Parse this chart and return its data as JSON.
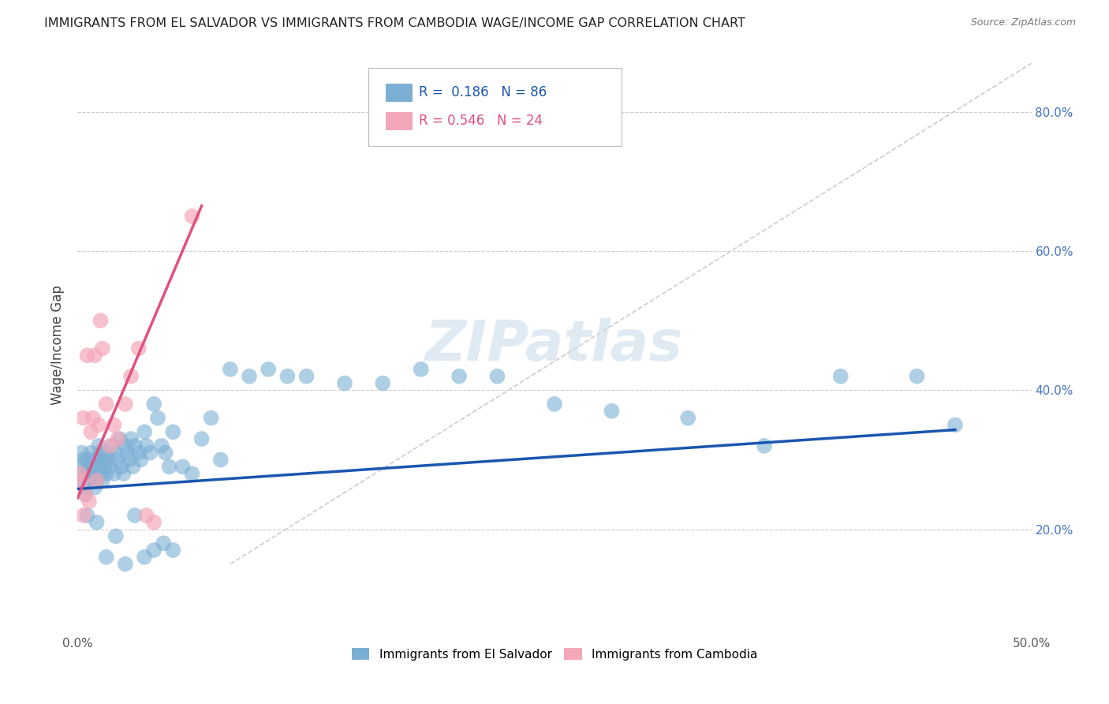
{
  "title": "IMMIGRANTS FROM EL SALVADOR VS IMMIGRANTS FROM CAMBODIA WAGE/INCOME GAP CORRELATION CHART",
  "source": "Source: ZipAtlas.com",
  "ylabel": "Wage/Income Gap",
  "yticks": [
    0.2,
    0.4,
    0.6,
    0.8
  ],
  "ytick_labels": [
    "20.0%",
    "40.0%",
    "60.0%",
    "80.0%"
  ],
  "xlim": [
    0.0,
    0.5
  ],
  "ylim": [
    0.05,
    0.88
  ],
  "blue_R": 0.186,
  "blue_N": 86,
  "pink_R": 0.546,
  "pink_N": 24,
  "blue_color": "#7bafd4",
  "pink_color": "#f4a7b9",
  "blue_line_color": "#1a56b0",
  "pink_line_color": "#e05080",
  "legend_label_blue": "Immigrants from El Salvador",
  "legend_label_pink": "Immigrants from Cambodia",
  "watermark_text": "ZIPatlas",
  "blue_scatter_x": [
    0.001,
    0.002,
    0.002,
    0.003,
    0.003,
    0.004,
    0.004,
    0.005,
    0.005,
    0.006,
    0.006,
    0.007,
    0.007,
    0.008,
    0.008,
    0.009,
    0.009,
    0.01,
    0.01,
    0.011,
    0.011,
    0.012,
    0.012,
    0.013,
    0.013,
    0.014,
    0.015,
    0.015,
    0.016,
    0.017,
    0.018,
    0.019,
    0.02,
    0.021,
    0.022,
    0.023,
    0.024,
    0.025,
    0.026,
    0.027,
    0.028,
    0.029,
    0.03,
    0.032,
    0.033,
    0.035,
    0.036,
    0.038,
    0.04,
    0.042,
    0.044,
    0.046,
    0.048,
    0.05,
    0.055,
    0.06,
    0.065,
    0.07,
    0.075,
    0.08,
    0.09,
    0.1,
    0.11,
    0.12,
    0.14,
    0.16,
    0.18,
    0.2,
    0.22,
    0.25,
    0.28,
    0.32,
    0.36,
    0.4,
    0.44,
    0.46,
    0.005,
    0.01,
    0.02,
    0.03,
    0.04,
    0.05,
    0.025,
    0.015,
    0.035,
    0.045
  ],
  "blue_scatter_y": [
    0.29,
    0.31,
    0.27,
    0.3,
    0.28,
    0.26,
    0.25,
    0.3,
    0.27,
    0.29,
    0.28,
    0.31,
    0.27,
    0.3,
    0.29,
    0.28,
    0.26,
    0.3,
    0.27,
    0.29,
    0.32,
    0.28,
    0.31,
    0.3,
    0.27,
    0.29,
    0.31,
    0.28,
    0.3,
    0.29,
    0.32,
    0.28,
    0.31,
    0.3,
    0.33,
    0.29,
    0.28,
    0.32,
    0.31,
    0.3,
    0.33,
    0.29,
    0.32,
    0.31,
    0.3,
    0.34,
    0.32,
    0.31,
    0.38,
    0.36,
    0.32,
    0.31,
    0.29,
    0.34,
    0.29,
    0.28,
    0.33,
    0.36,
    0.3,
    0.43,
    0.42,
    0.43,
    0.42,
    0.42,
    0.41,
    0.41,
    0.43,
    0.42,
    0.42,
    0.38,
    0.37,
    0.36,
    0.32,
    0.42,
    0.42,
    0.35,
    0.22,
    0.21,
    0.19,
    0.22,
    0.17,
    0.17,
    0.15,
    0.16,
    0.16,
    0.18
  ],
  "pink_scatter_x": [
    0.001,
    0.002,
    0.003,
    0.003,
    0.004,
    0.005,
    0.006,
    0.007,
    0.008,
    0.009,
    0.01,
    0.011,
    0.012,
    0.013,
    0.015,
    0.017,
    0.019,
    0.021,
    0.025,
    0.028,
    0.032,
    0.036,
    0.04,
    0.06
  ],
  "pink_scatter_y": [
    0.28,
    0.27,
    0.22,
    0.36,
    0.25,
    0.45,
    0.24,
    0.34,
    0.36,
    0.45,
    0.27,
    0.35,
    0.5,
    0.46,
    0.38,
    0.32,
    0.35,
    0.33,
    0.38,
    0.42,
    0.46,
    0.22,
    0.21,
    0.65
  ],
  "blue_line_x": [
    0.0,
    0.46
  ],
  "blue_line_y": [
    0.258,
    0.343
  ],
  "pink_line_x": [
    0.0,
    0.065
  ],
  "pink_line_y": [
    0.245,
    0.665
  ],
  "diag_line_x": [
    0.08,
    0.5
  ],
  "diag_line_y": [
    0.15,
    0.87
  ]
}
